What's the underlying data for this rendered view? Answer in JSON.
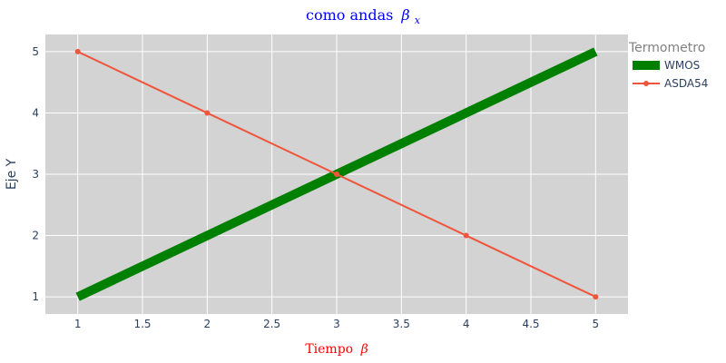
{
  "chart_data": {
    "type": "line",
    "title": "como andas",
    "title_math": "β",
    "title_math_sub": "x",
    "title_color": "#0000ff",
    "xlabel": "Tiempo",
    "xlabel_math": "β",
    "xlabel_color": "#ff0000",
    "ylabel": "Eje Y",
    "xlim": [
      0.75,
      5.25
    ],
    "ylim": [
      0.72,
      5.28
    ],
    "x_ticks": [
      "1",
      "1.5",
      "2",
      "2.5",
      "3",
      "3.5",
      "4",
      "4.5",
      "5"
    ],
    "y_ticks": [
      "1",
      "2",
      "3",
      "4",
      "5"
    ],
    "grid": true,
    "background_color": "#d3d3d3",
    "legend": {
      "title": "Termometro",
      "title_color": "#808080",
      "placement": "right"
    },
    "series": [
      {
        "name": "WMOS",
        "x": [
          1,
          2,
          3,
          4,
          5
        ],
        "y": [
          1,
          2,
          3,
          4,
          5
        ],
        "color": "#008000",
        "mode": "lines"
      },
      {
        "name": "ASDA54",
        "x": [
          1,
          2,
          3,
          4,
          5
        ],
        "y": [
          5,
          4,
          3,
          2,
          1
        ],
        "color": "#ef553b",
        "mode": "lines+markers"
      }
    ]
  }
}
